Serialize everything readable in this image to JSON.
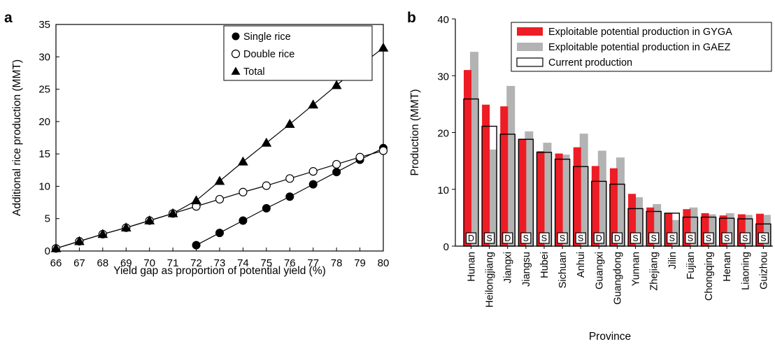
{
  "panels": {
    "a": "a",
    "b": "b"
  },
  "chart_data": [
    {
      "panel": "a",
      "type": "line",
      "xlabel": "Yield gap as proportion of potential yield (%)",
      "ylabel": "Additional rice production (MMT)",
      "xlim": [
        66,
        80
      ],
      "ylim": [
        0,
        35
      ],
      "xticks": [
        66,
        67,
        68,
        69,
        70,
        71,
        72,
        73,
        74,
        75,
        76,
        77,
        78,
        79,
        80
      ],
      "yticks": [
        0,
        5,
        10,
        15,
        20,
        25,
        30,
        35
      ],
      "grid": false,
      "legend_position": "top-right",
      "series": [
        {
          "name": "Single rice",
          "marker": "filled-circle",
          "x": [
            72,
            73,
            74,
            75,
            76,
            77,
            78,
            79,
            80
          ],
          "y": [
            0.9,
            2.8,
            4.7,
            6.6,
            8.4,
            10.3,
            12.2,
            14.1,
            15.9
          ]
        },
        {
          "name": "Double rice",
          "marker": "open-circle",
          "x": [
            66,
            67,
            68,
            69,
            70,
            71,
            72,
            73,
            74,
            75,
            76,
            77,
            78,
            79,
            80
          ],
          "y": [
            0.4,
            1.5,
            2.6,
            3.6,
            4.7,
            5.8,
            6.9,
            8.0,
            9.1,
            10.1,
            11.2,
            12.3,
            13.4,
            14.5,
            15.5
          ]
        },
        {
          "name": "Total",
          "marker": "filled-triangle",
          "x": [
            66,
            67,
            68,
            69,
            70,
            71,
            72,
            73,
            74,
            75,
            76,
            77,
            78,
            79,
            80
          ],
          "y": [
            0.4,
            1.5,
            2.6,
            3.6,
            4.7,
            5.8,
            7.8,
            10.8,
            13.8,
            16.7,
            19.6,
            22.6,
            25.6,
            28.6,
            31.4
          ]
        }
      ]
    },
    {
      "panel": "b",
      "type": "bar",
      "xlabel": "Province",
      "ylabel": "Production (MMT)",
      "ylim": [
        0,
        40
      ],
      "yticks": [
        0,
        10,
        20,
        30,
        40
      ],
      "grid": false,
      "legend_position": "top",
      "categories": [
        "Hunan",
        "Heilongjiang",
        "Jiangxi",
        "Jiangsu",
        "Hubei",
        "Sichuan",
        "Anhui",
        "Guangxi",
        "Guangdong",
        "Yunnan",
        "Zhejiang",
        "Jilin",
        "Fujian",
        "Chongqing",
        "Henan",
        "Liaoning",
        "Guizhou"
      ],
      "cropping_system": [
        "D",
        "S",
        "D",
        "S",
        "S",
        "S",
        "S",
        "D",
        "D",
        "S",
        "S",
        "S",
        "S",
        "S",
        "S",
        "S",
        "S"
      ],
      "series": [
        {
          "name": "Exploitable potential production in GYGA",
          "color": "#ee1c25",
          "values": [
            31.0,
            24.9,
            24.6,
            18.9,
            16.7,
            16.3,
            17.4,
            14.1,
            13.7,
            9.2,
            6.8,
            5.8,
            6.5,
            5.8,
            5.4,
            5.6,
            5.7
          ]
        },
        {
          "name": "Exploitable potential production in GAEZ",
          "color": "#b3b3b3",
          "values": [
            34.2,
            17.0,
            28.2,
            20.2,
            18.2,
            16.1,
            19.8,
            16.8,
            15.6,
            8.6,
            7.4,
            4.6,
            6.8,
            5.6,
            5.8,
            5.5,
            5.5
          ]
        },
        {
          "name": "Current production",
          "color": "#ffffff",
          "values": [
            25.9,
            21.1,
            19.7,
            18.8,
            16.5,
            15.3,
            14.0,
            11.4,
            10.9,
            6.6,
            6.1,
            5.8,
            5.1,
            5.1,
            4.9,
            4.8,
            3.9
          ]
        }
      ]
    }
  ]
}
